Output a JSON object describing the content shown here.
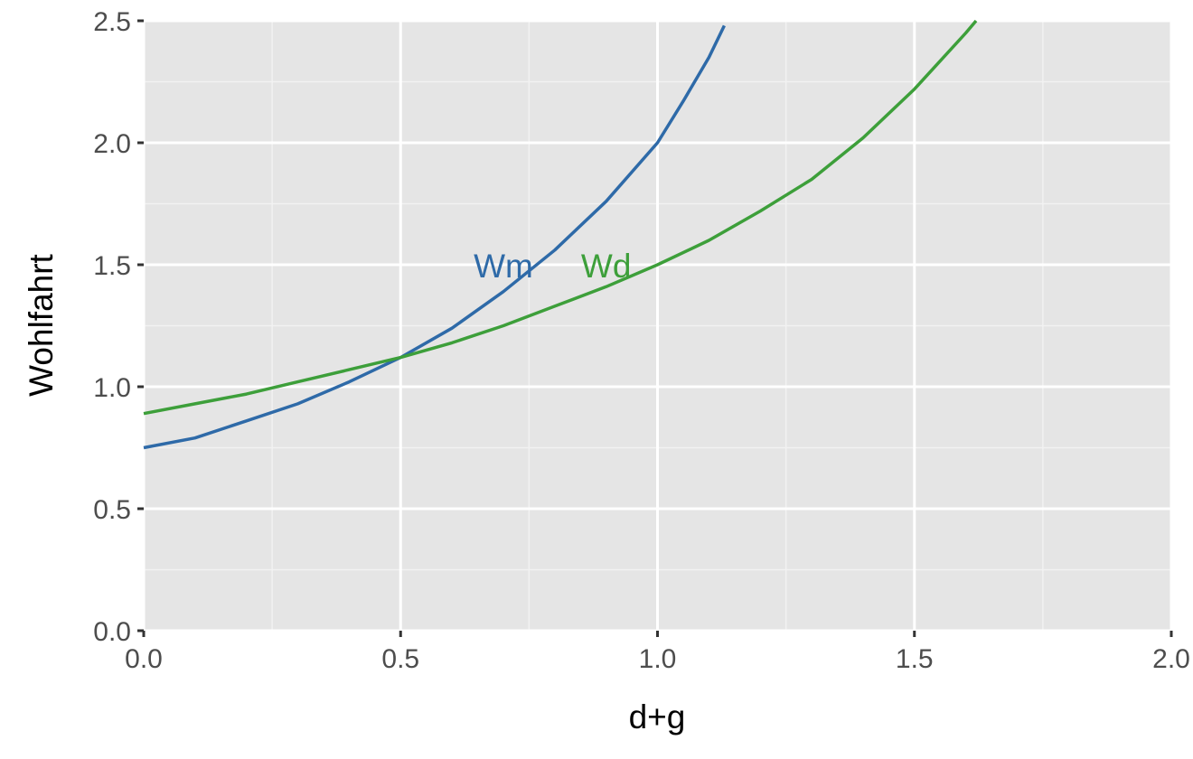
{
  "chart_data": {
    "type": "line",
    "title": "",
    "xlabel": "d+g",
    "ylabel": "Wohlfahrt",
    "xlim": [
      0,
      2
    ],
    "ylim": [
      0,
      2.5
    ],
    "x_ticks": [
      "0.0",
      "0.5",
      "1.0",
      "1.5",
      "2.0"
    ],
    "y_ticks": [
      "0.0",
      "0.5",
      "1.0",
      "1.5",
      "2.0",
      "2.5"
    ],
    "grid": true,
    "legend": "none",
    "series": [
      {
        "name": "Wm",
        "color": "#2e6aa8",
        "label_at": [
          0.7,
          1.5
        ],
        "x": [
          0.0,
          0.1,
          0.2,
          0.3,
          0.4,
          0.5,
          0.6,
          0.7,
          0.8,
          0.9,
          1.0,
          1.05,
          1.1,
          1.13
        ],
        "y": [
          0.75,
          0.79,
          0.86,
          0.93,
          1.02,
          1.12,
          1.24,
          1.39,
          1.56,
          1.76,
          2.0,
          2.17,
          2.35,
          2.48
        ]
      },
      {
        "name": "Wd",
        "color": "#3d9f3a",
        "label_at": [
          0.9,
          1.5
        ],
        "x": [
          0.0,
          0.1,
          0.2,
          0.3,
          0.4,
          0.5,
          0.6,
          0.7,
          0.8,
          0.9,
          1.0,
          1.1,
          1.2,
          1.3,
          1.4,
          1.5,
          1.6,
          1.62
        ],
        "y": [
          0.89,
          0.93,
          0.97,
          1.02,
          1.07,
          1.12,
          1.18,
          1.25,
          1.33,
          1.41,
          1.5,
          1.6,
          1.72,
          1.85,
          2.02,
          2.22,
          2.45,
          2.5
        ]
      }
    ]
  }
}
